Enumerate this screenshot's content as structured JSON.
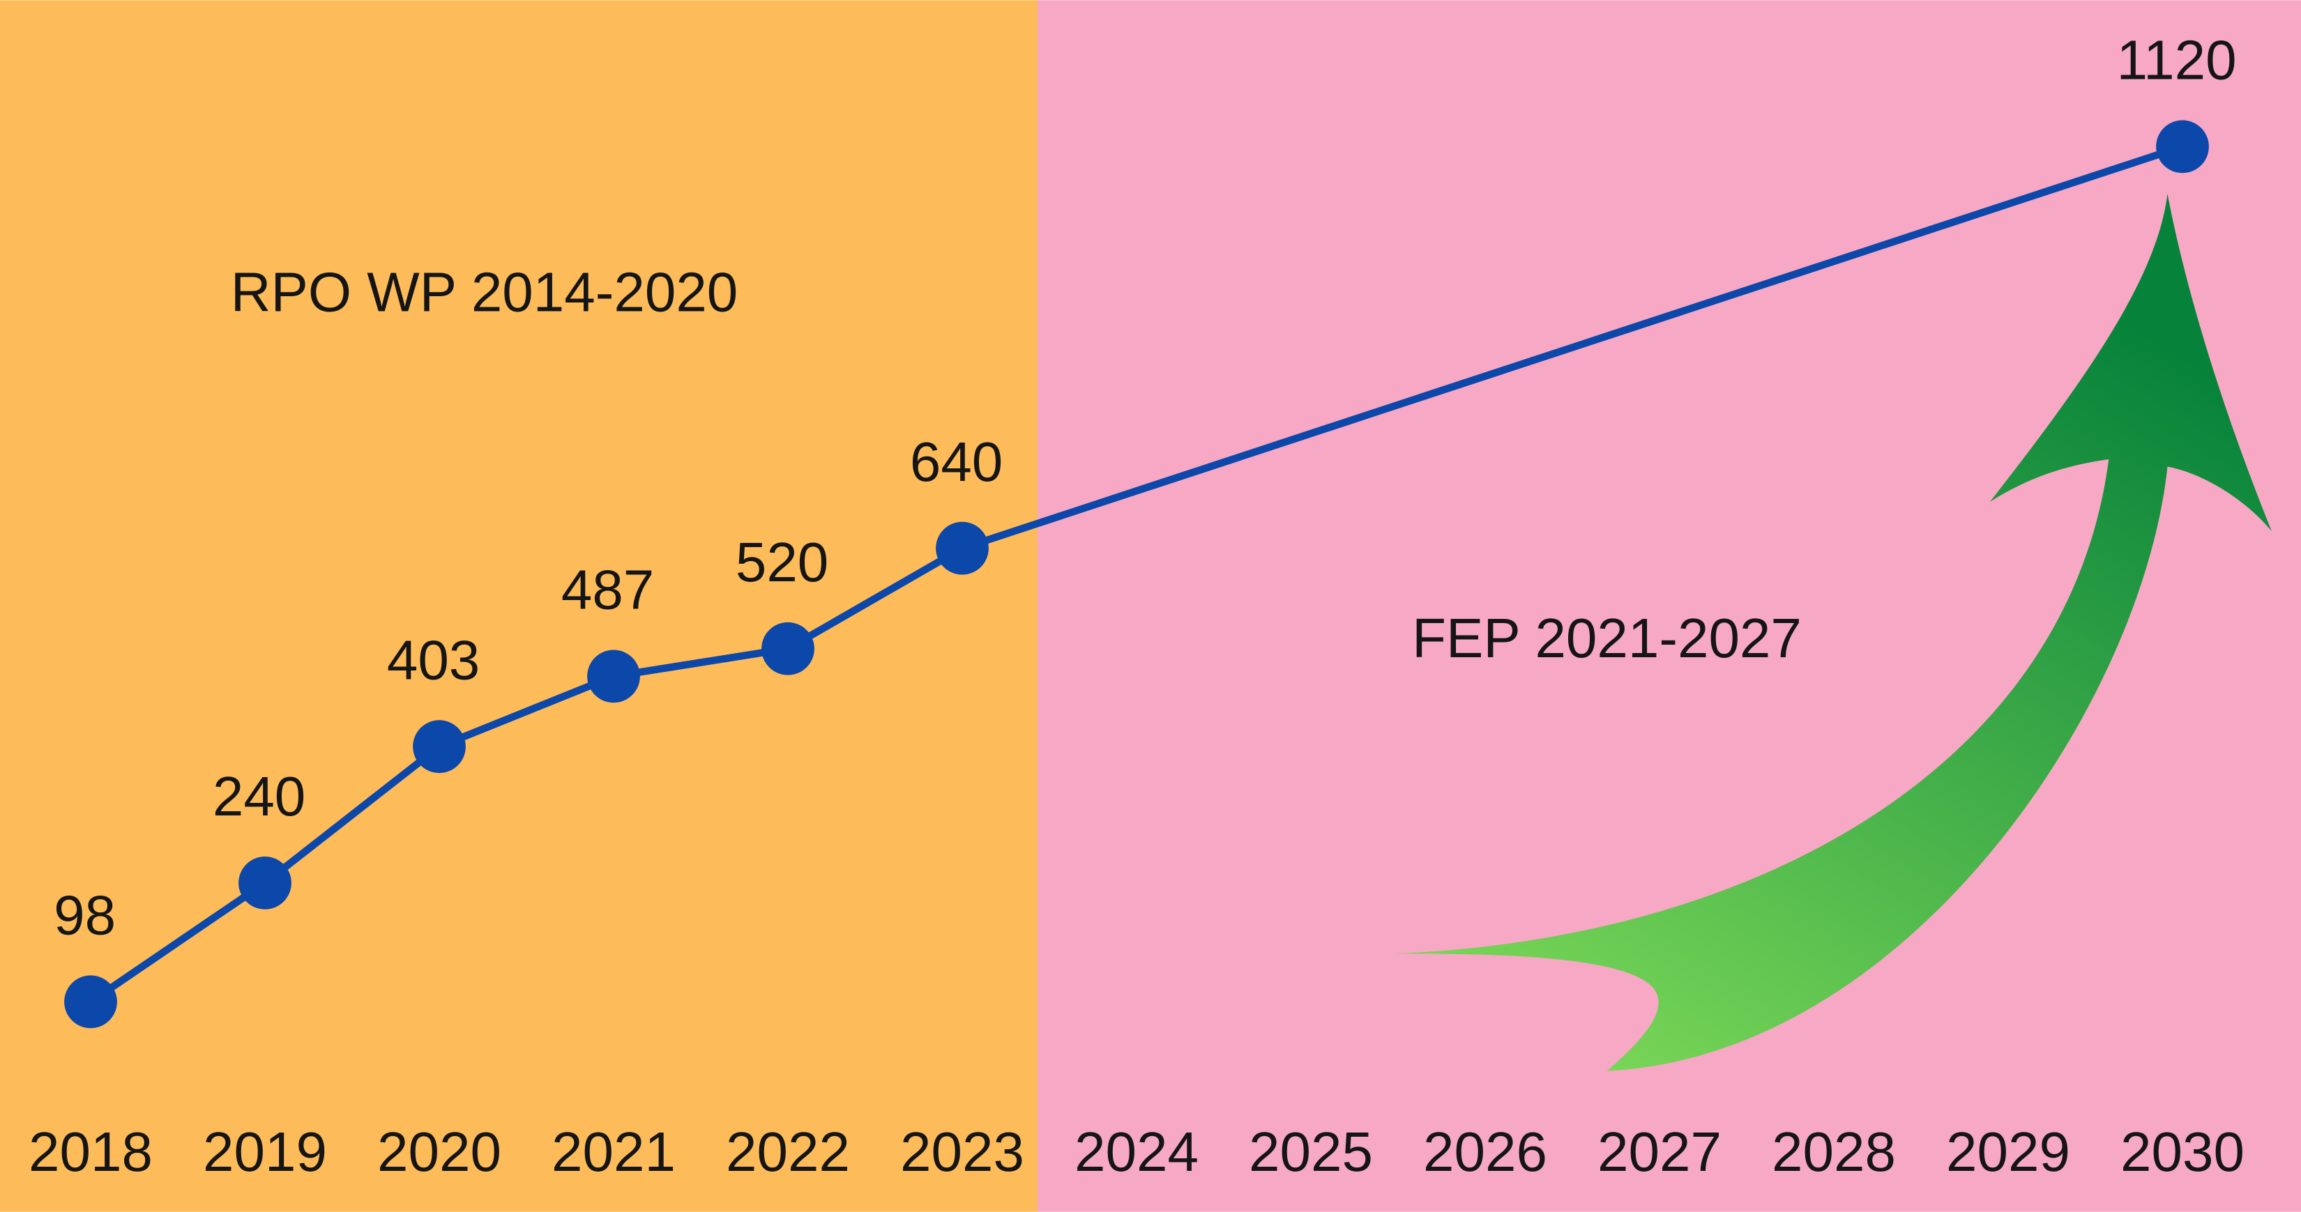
{
  "chart_data": {
    "type": "line",
    "x": [
      2018,
      2019,
      2020,
      2021,
      2022,
      2023,
      2030
    ],
    "values": [
      98,
      240,
      403,
      487,
      520,
      640,
      1120
    ],
    "color": "#0c47aa",
    "xlim": [
      2017.48,
      2030.68
    ],
    "xticks": [
      2018,
      2019,
      2020,
      2021,
      2022,
      2023,
      2024,
      2025,
      2026,
      2027,
      2028,
      2029,
      2030
    ],
    "ylim": [
      -153,
      1295
    ],
    "regions": [
      {
        "label": "RPO WP 2014-2020",
        "color": "#fdbb59"
      },
      {
        "label": "FEP 2021-2027",
        "color": "#f7a8c4"
      }
    ]
  }
}
